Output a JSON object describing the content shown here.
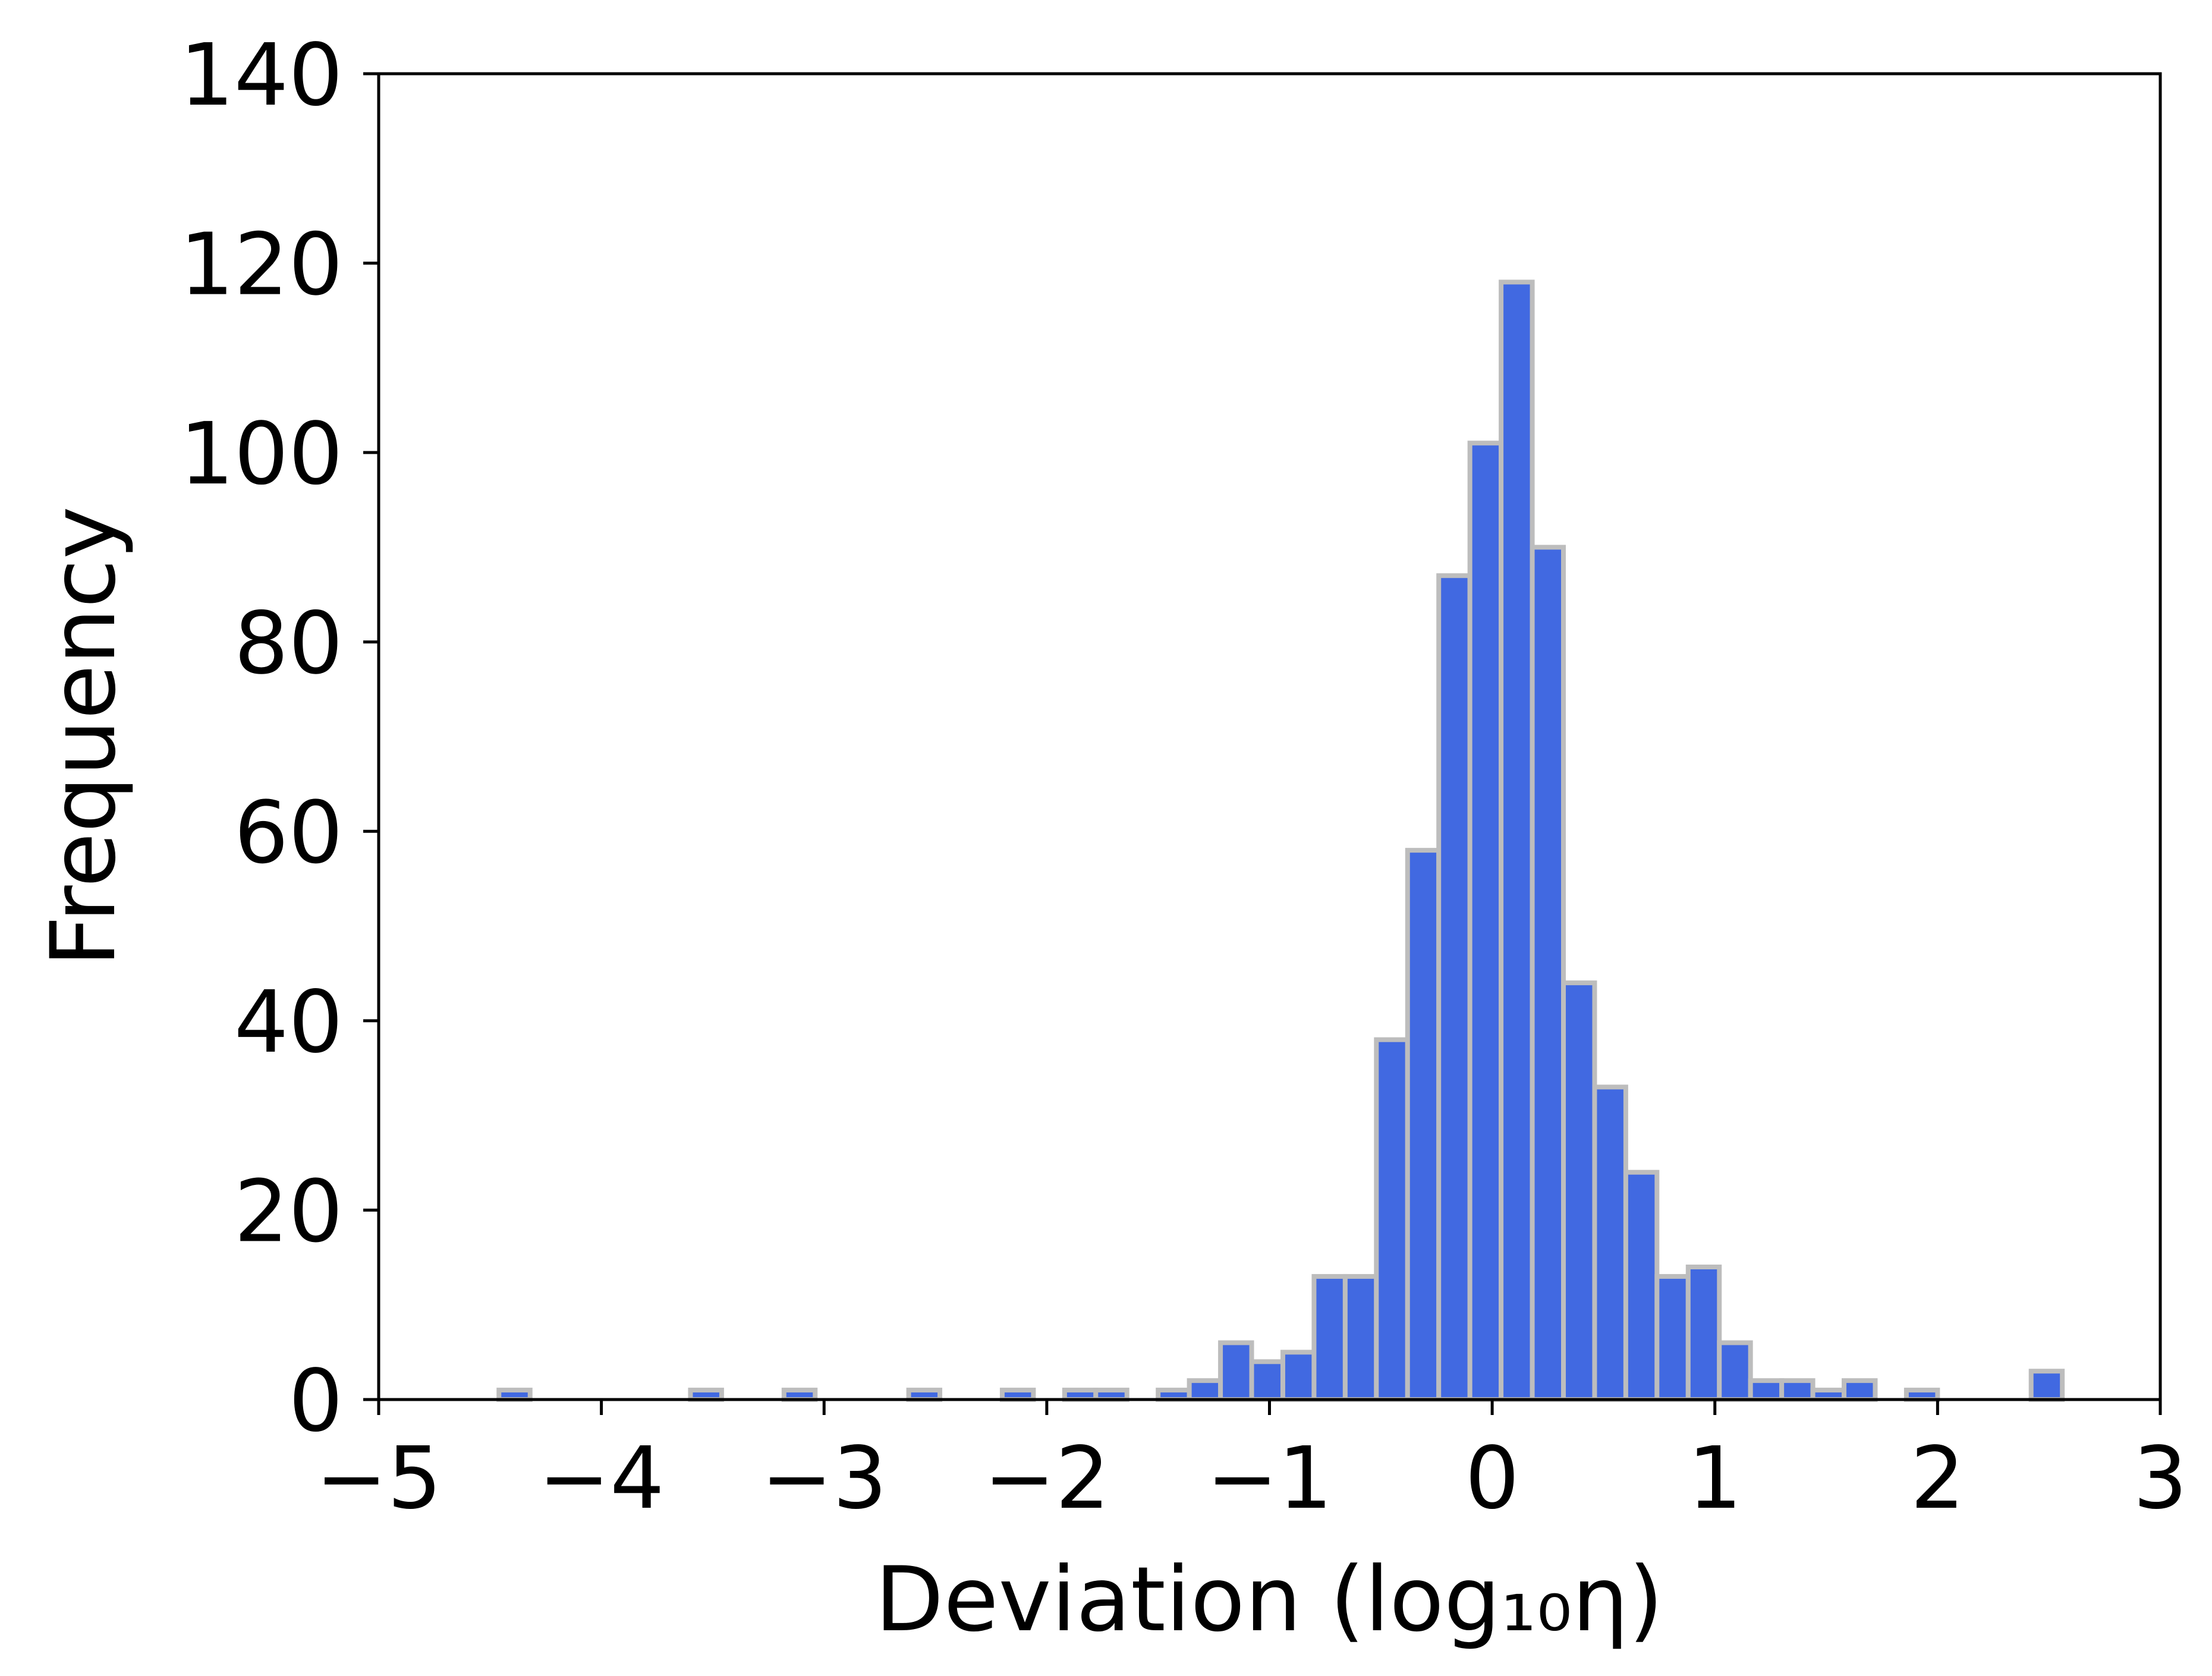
{
  "chart_data": {
    "type": "bar",
    "title": "",
    "xlabel": "Deviation (log₁₀η)",
    "ylabel": "Frequency",
    "xlim": [
      -5,
      3
    ],
    "ylim": [
      0,
      140
    ],
    "xticks": [
      -5,
      -4,
      -3,
      -2,
      -1,
      0,
      1,
      2,
      3
    ],
    "xtick_labels": [
      "−5",
      "−4",
      "−3",
      "−2",
      "−1",
      "0",
      "1",
      "2",
      "3"
    ],
    "yticks": [
      0,
      20,
      40,
      60,
      80,
      100,
      120,
      140
    ],
    "ytick_labels": [
      "0",
      "20",
      "40",
      "60",
      "80",
      "100",
      "120",
      "140"
    ],
    "bin_width": 0.14,
    "bins": [
      {
        "x": -4.39,
        "value": 1
      },
      {
        "x": -3.53,
        "value": 1
      },
      {
        "x": -3.11,
        "value": 1
      },
      {
        "x": -2.55,
        "value": 1
      },
      {
        "x": -2.13,
        "value": 1
      },
      {
        "x": -1.85,
        "value": 1
      },
      {
        "x": -1.71,
        "value": 1
      },
      {
        "x": -1.43,
        "value": 1
      },
      {
        "x": -1.29,
        "value": 2
      },
      {
        "x": -1.15,
        "value": 6
      },
      {
        "x": -1.01,
        "value": 4
      },
      {
        "x": -0.87,
        "value": 5
      },
      {
        "x": -0.73,
        "value": 13
      },
      {
        "x": -0.59,
        "value": 13
      },
      {
        "x": -0.45,
        "value": 38
      },
      {
        "x": -0.31,
        "value": 58
      },
      {
        "x": -0.17,
        "value": 87
      },
      {
        "x": -0.03,
        "value": 101
      },
      {
        "x": 0.11,
        "value": 118
      },
      {
        "x": 0.25,
        "value": 90
      },
      {
        "x": 0.39,
        "value": 44
      },
      {
        "x": 0.53,
        "value": 33
      },
      {
        "x": 0.67,
        "value": 24
      },
      {
        "x": 0.81,
        "value": 13
      },
      {
        "x": 0.95,
        "value": 14
      },
      {
        "x": 1.09,
        "value": 6
      },
      {
        "x": 1.23,
        "value": 2
      },
      {
        "x": 1.37,
        "value": 2
      },
      {
        "x": 1.51,
        "value": 1
      },
      {
        "x": 1.65,
        "value": 2
      },
      {
        "x": 1.93,
        "value": 1
      },
      {
        "x": 2.49,
        "value": 3
      }
    ],
    "bar_color": "#4169e1",
    "bar_edge_color": "#bdbdbd",
    "grid": false,
    "legend": "none"
  }
}
